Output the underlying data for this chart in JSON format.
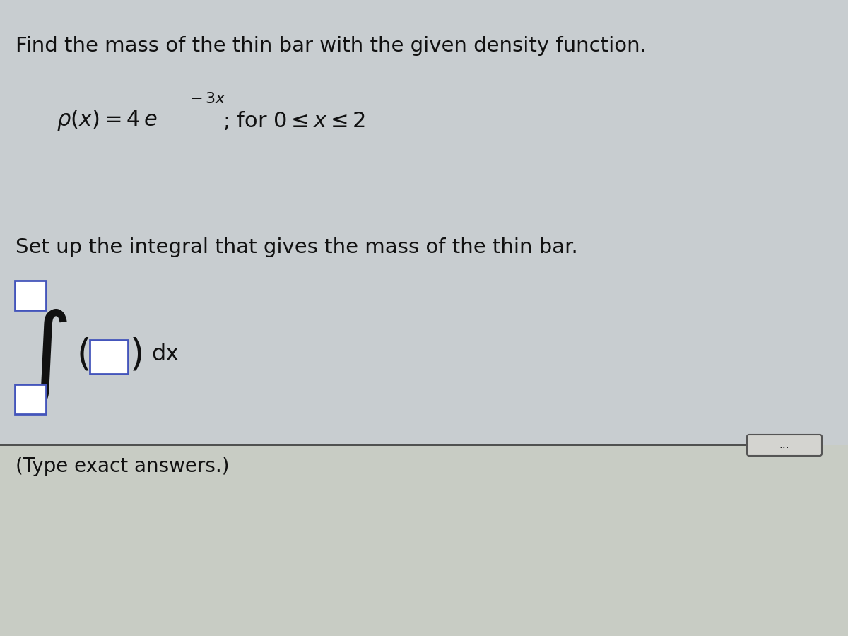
{
  "title_text": "Find the mass of the thin bar with the given density function.",
  "setup_text": "Set up the integral that gives the mass of the thin bar.",
  "dx_text": "dx",
  "answer_note": "(Type exact answers.)",
  "dots_text": "...",
  "bg_top_color": "#c8cdd0",
  "bg_bottom_color": "#c8ccc4",
  "text_color": "#111111",
  "box_border_color": "#4455bb",
  "separator_color": "#444444",
  "title_fontsize": 21,
  "body_fontsize": 20,
  "small_fontsize": 15
}
